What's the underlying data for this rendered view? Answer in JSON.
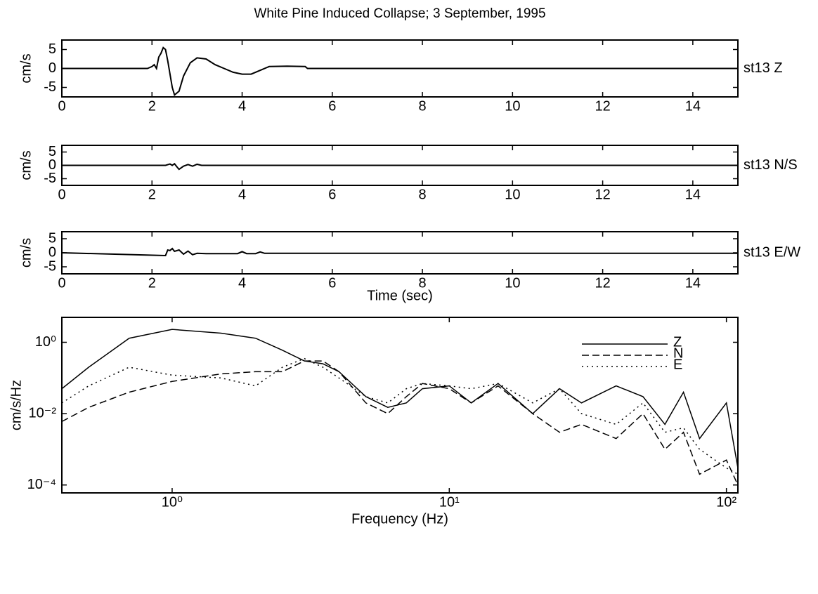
{
  "chart_data": [
    {
      "type": "line",
      "title": "White Pine Induced Collapse; 3 September, 1995",
      "ylabel": "cm/s",
      "x": [
        0,
        1.9,
        2.0,
        2.05,
        2.1,
        2.15,
        2.2,
        2.25,
        2.3,
        2.35,
        2.45,
        2.5,
        2.6,
        2.7,
        2.85,
        3.0,
        3.2,
        3.4,
        3.6,
        3.8,
        4.0,
        4.2,
        4.4,
        4.6,
        5.0,
        5.4,
        5.45,
        15
      ],
      "series": [
        {
          "name": "st13 Z",
          "color": "#000000",
          "linestyle": "solid",
          "values": [
            0,
            0,
            0.5,
            1,
            0,
            3,
            4,
            5.5,
            5,
            2,
            -5,
            -7,
            -6,
            -2,
            1.5,
            2.8,
            2.5,
            1,
            0,
            -1,
            -1.5,
            -1.5,
            -0.5,
            0.5,
            0.6,
            0.5,
            0,
            0
          ]
        }
      ],
      "xlim": [
        0,
        15
      ],
      "xticks": [
        0,
        2,
        4,
        6,
        8,
        10,
        12,
        14
      ],
      "ylim": [
        -7.5,
        7.5
      ],
      "yticks": [
        -5,
        0,
        5
      ]
    },
    {
      "type": "line",
      "ylabel": "cm/s",
      "x": [
        0,
        2.3,
        2.4,
        2.45,
        2.5,
        2.55,
        2.6,
        2.7,
        2.8,
        2.9,
        3.0,
        3.1,
        15
      ],
      "series": [
        {
          "name": "st13 N/S",
          "color": "#000000",
          "linestyle": "solid",
          "values": [
            0,
            0,
            0.5,
            0,
            0.6,
            -0.5,
            -1.5,
            -0.3,
            0.3,
            -0.3,
            0.4,
            0,
            0
          ]
        }
      ],
      "xlim": [
        0,
        15
      ],
      "xticks": [
        0,
        2,
        4,
        6,
        8,
        10,
        12,
        14
      ],
      "ylim": [
        -7.5,
        7.5
      ],
      "yticks": [
        -5,
        0,
        5
      ]
    },
    {
      "type": "line",
      "ylabel": "cm/s",
      "xlabel": "Time (sec)",
      "x": [
        0,
        2.3,
        2.35,
        2.4,
        2.45,
        2.5,
        2.6,
        2.7,
        2.8,
        2.9,
        3.0,
        3.2,
        3.9,
        4.0,
        4.1,
        4.3,
        4.4,
        4.5,
        15
      ],
      "series": [
        {
          "name": "st13 E/W",
          "color": "#000000",
          "linestyle": "solid",
          "values": [
            0,
            -1,
            1,
            0.8,
            1.5,
            0.5,
            1,
            -0.5,
            0.6,
            -0.7,
            -0.2,
            -0.3,
            -0.3,
            0.4,
            -0.3,
            -0.3,
            0.3,
            -0.2,
            -0.2
          ]
        }
      ],
      "xlim": [
        0,
        15
      ],
      "xticks": [
        0,
        2,
        4,
        6,
        8,
        10,
        12,
        14
      ],
      "ylim": [
        -7.5,
        7.5
      ],
      "yticks": [
        -5,
        0,
        5
      ]
    },
    {
      "type": "line",
      "ylabel": "cm/s/Hz",
      "xlabel": "Frequency (Hz)",
      "log_x": true,
      "log_y": true,
      "legend": "upper right",
      "x": [
        0.4,
        0.5,
        0.7,
        1,
        1.5,
        2,
        2.5,
        3,
        3.5,
        4,
        5,
        6,
        7,
        8,
        10,
        12,
        15,
        20,
        25,
        30,
        40,
        50,
        60,
        70,
        80,
        100,
        110
      ],
      "series": [
        {
          "name": "Z",
          "color": "#000000",
          "linestyle": "solid",
          "values": [
            0.05,
            0.2,
            1.3,
            2.3,
            1.8,
            1.3,
            0.6,
            0.3,
            0.25,
            0.15,
            0.03,
            0.015,
            0.02,
            0.05,
            0.06,
            0.02,
            0.07,
            0.01,
            0.05,
            0.02,
            0.06,
            0.03,
            0.005,
            0.04,
            0.002,
            0.02,
            0.0003
          ]
        },
        {
          "name": "N",
          "color": "#000000",
          "linestyle": "dashed",
          "values": [
            0.006,
            0.015,
            0.04,
            0.08,
            0.13,
            0.15,
            0.15,
            0.3,
            0.3,
            0.15,
            0.02,
            0.01,
            0.03,
            0.07,
            0.05,
            0.02,
            0.06,
            0.01,
            0.003,
            0.005,
            0.002,
            0.01,
            0.001,
            0.003,
            0.0002,
            0.0005,
            0.0001
          ]
        },
        {
          "name": "E",
          "color": "#000000",
          "linestyle": "dotted",
          "values": [
            0.02,
            0.06,
            0.2,
            0.12,
            0.1,
            0.06,
            0.2,
            0.35,
            0.2,
            0.1,
            0.03,
            0.02,
            0.05,
            0.07,
            0.06,
            0.05,
            0.07,
            0.02,
            0.05,
            0.01,
            0.005,
            0.02,
            0.003,
            0.004,
            0.001,
            0.0003,
            0.0002
          ]
        }
      ],
      "xlim": [
        0.4,
        110
      ],
      "xticks": [
        {
          "value": 1,
          "label": "10⁰"
        },
        {
          "value": 10,
          "label": "10¹"
        },
        {
          "value": 100,
          "label": "10²"
        }
      ],
      "ylim": [
        6e-05,
        5
      ],
      "yticks": [
        {
          "value": 0.0001,
          "label": "10⁻⁴"
        },
        {
          "value": 0.01,
          "label": "10⁻²"
        },
        {
          "value": 1,
          "label": "10⁰"
        }
      ]
    }
  ]
}
